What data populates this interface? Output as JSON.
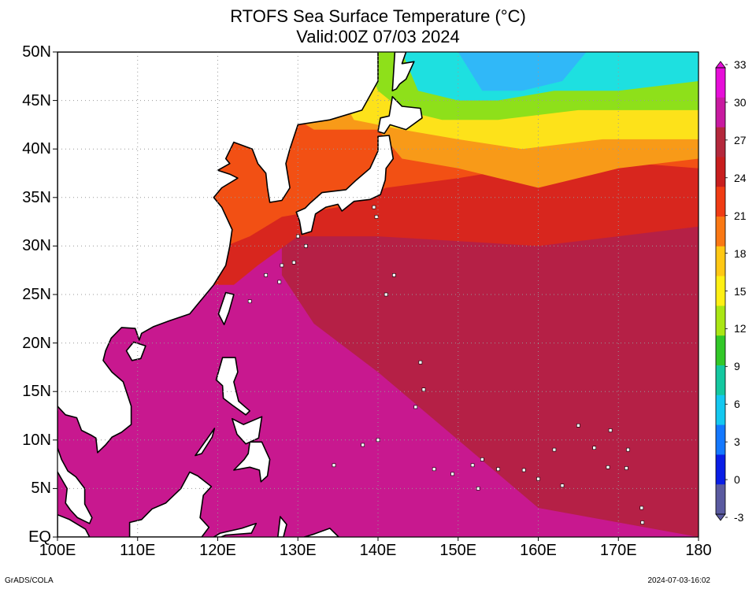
{
  "title": "RTOFS Sea Surface Temperature (°C)",
  "subtitle": "Valid:00Z 07/03 2024",
  "lat_labels": [
    "50N",
    "45N",
    "40N",
    "35N",
    "30N",
    "25N",
    "20N",
    "15N",
    "10N",
    "5N",
    "EQ"
  ],
  "lon_labels": [
    "100E",
    "110E",
    "120E",
    "130E",
    "140E",
    "150E",
    "160E",
    "170E",
    "180"
  ],
  "colorbar": {
    "labels": [
      "33",
      "30",
      "27",
      "24",
      "21",
      "18",
      "15",
      "12",
      "9",
      "6",
      "3",
      "0",
      "-3"
    ],
    "colors": [
      "#e60ed8",
      "#c81aa0",
      "#b4283c",
      "#c81e1e",
      "#f03c14",
      "#fa7814",
      "#ffc814",
      "#fff014",
      "#aae614",
      "#32c828",
      "#14c8a0",
      "#14c8f0",
      "#1478ff",
      "#0a1ee6",
      "#5a5aa0"
    ]
  },
  "footer_left": "GrADS/COLA",
  "footer_right": "2024-07-03-16:02",
  "map": {
    "lon_range": [
      100,
      180
    ],
    "lat_range": [
      0,
      50
    ],
    "sst_colors": {
      "very_warm": "#c8188f",
      "warm": "#b52046",
      "hot_red": "#d8261e",
      "orange_red": "#f25014",
      "orange": "#f89a18",
      "yellow": "#fde21a",
      "green": "#8ee01a",
      "cyan": "#1ee0e0",
      "blue_cyan": "#30b8f8",
      "land": "#ffffff",
      "coast": "#000000"
    }
  }
}
